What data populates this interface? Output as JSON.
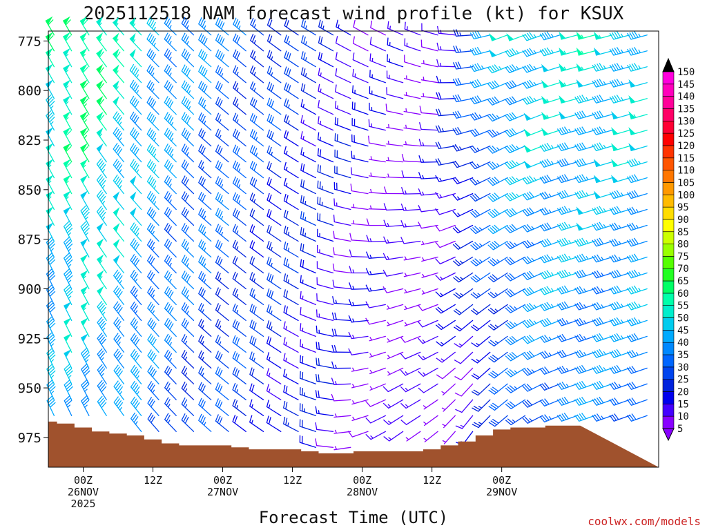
{
  "chart_data": {
    "type": "wind-barb-time-height",
    "title": "2025112518 NAM forecast wind profile (kt) for KSUX",
    "xlabel": "Forecast Time (UTC)",
    "ylabel": "",
    "credit": "coolwx.com/models",
    "x_start_hours": -6,
    "x_end_hours": 99,
    "x_step_hours": 3,
    "ylim": [
      990,
      770
    ],
    "y_step_mb": 8,
    "yticks": [
      775,
      800,
      825,
      850,
      875,
      900,
      925,
      950,
      975
    ],
    "xticks": [
      {
        "hour": 0,
        "labels": [
          "00Z",
          "26NOV",
          "2025"
        ]
      },
      {
        "hour": 12,
        "labels": [
          "12Z"
        ]
      },
      {
        "hour": 24,
        "labels": [
          "00Z",
          "27NOV"
        ]
      },
      {
        "hour": 36,
        "labels": [
          "12Z"
        ]
      },
      {
        "hour": 48,
        "labels": [
          "00Z",
          "28NOV"
        ]
      },
      {
        "hour": 60,
        "labels": [
          "12Z"
        ]
      },
      {
        "hour": 72,
        "labels": [
          "00Z",
          "29NOV"
        ]
      }
    ],
    "surface_pressure": {
      "hours": [
        -6,
        -3,
        0,
        3,
        6,
        9,
        12,
        15,
        18,
        21,
        24,
        27,
        30,
        33,
        36,
        39,
        42,
        45,
        48,
        51,
        54,
        57,
        60,
        63,
        66,
        69,
        72,
        75,
        78,
        81,
        84
      ],
      "mb": [
        967,
        968,
        970,
        972,
        973,
        974,
        976,
        978,
        979,
        979,
        979,
        980,
        981,
        981,
        981,
        982,
        983,
        983,
        982,
        982,
        982,
        982,
        981,
        979,
        977,
        974,
        971,
        970,
        970,
        969,
        969
      ],
      "color": "#a0522d"
    },
    "wind_model": {
      "keyframes_hours": [
        -6,
        0,
        6,
        12,
        18,
        24,
        30,
        36,
        42,
        48,
        54,
        60,
        66,
        72,
        78,
        84
      ],
      "dir_top_deg": [
        330,
        330,
        320,
        315,
        315,
        310,
        310,
        305,
        300,
        300,
        295,
        290,
        270,
        250,
        250,
        255
      ],
      "dir_bottom_deg": [
        335,
        335,
        325,
        320,
        315,
        310,
        305,
        300,
        280,
        250,
        230,
        230,
        210,
        225,
        240,
        250
      ],
      "speed_top_kt": [
        55,
        65,
        55,
        45,
        40,
        35,
        30,
        25,
        20,
        15,
        10,
        8,
        25,
        45,
        50,
        50
      ],
      "speed_bottom_kt": [
        35,
        40,
        38,
        33,
        28,
        25,
        22,
        18,
        15,
        10,
        8,
        8,
        10,
        20,
        30,
        33
      ]
    },
    "colorbar": {
      "levels": [
        5,
        10,
        15,
        20,
        25,
        30,
        35,
        40,
        45,
        50,
        55,
        60,
        65,
        70,
        75,
        80,
        85,
        90,
        95,
        100,
        105,
        110,
        115,
        120,
        125,
        130,
        135,
        140,
        145,
        150
      ],
      "colors": [
        "#8800ff",
        "#4400ff",
        "#0000ee",
        "#0022dd",
        "#0044ee",
        "#0066ff",
        "#0088ff",
        "#00aaff",
        "#00ccee",
        "#00eecc",
        "#00ffaa",
        "#00ff66",
        "#22ff22",
        "#55ff00",
        "#99ff00",
        "#ccff00",
        "#ffff00",
        "#ffdd00",
        "#ffbb00",
        "#ff9900",
        "#ff7700",
        "#ff5500",
        "#ff3300",
        "#ff0000",
        "#ff0033",
        "#ff0066",
        "#ff0099",
        "#ff00bb",
        "#ff00dd",
        "#ff00ff"
      ],
      "over_color": "#000000",
      "under_color": "#8800ff"
    }
  }
}
